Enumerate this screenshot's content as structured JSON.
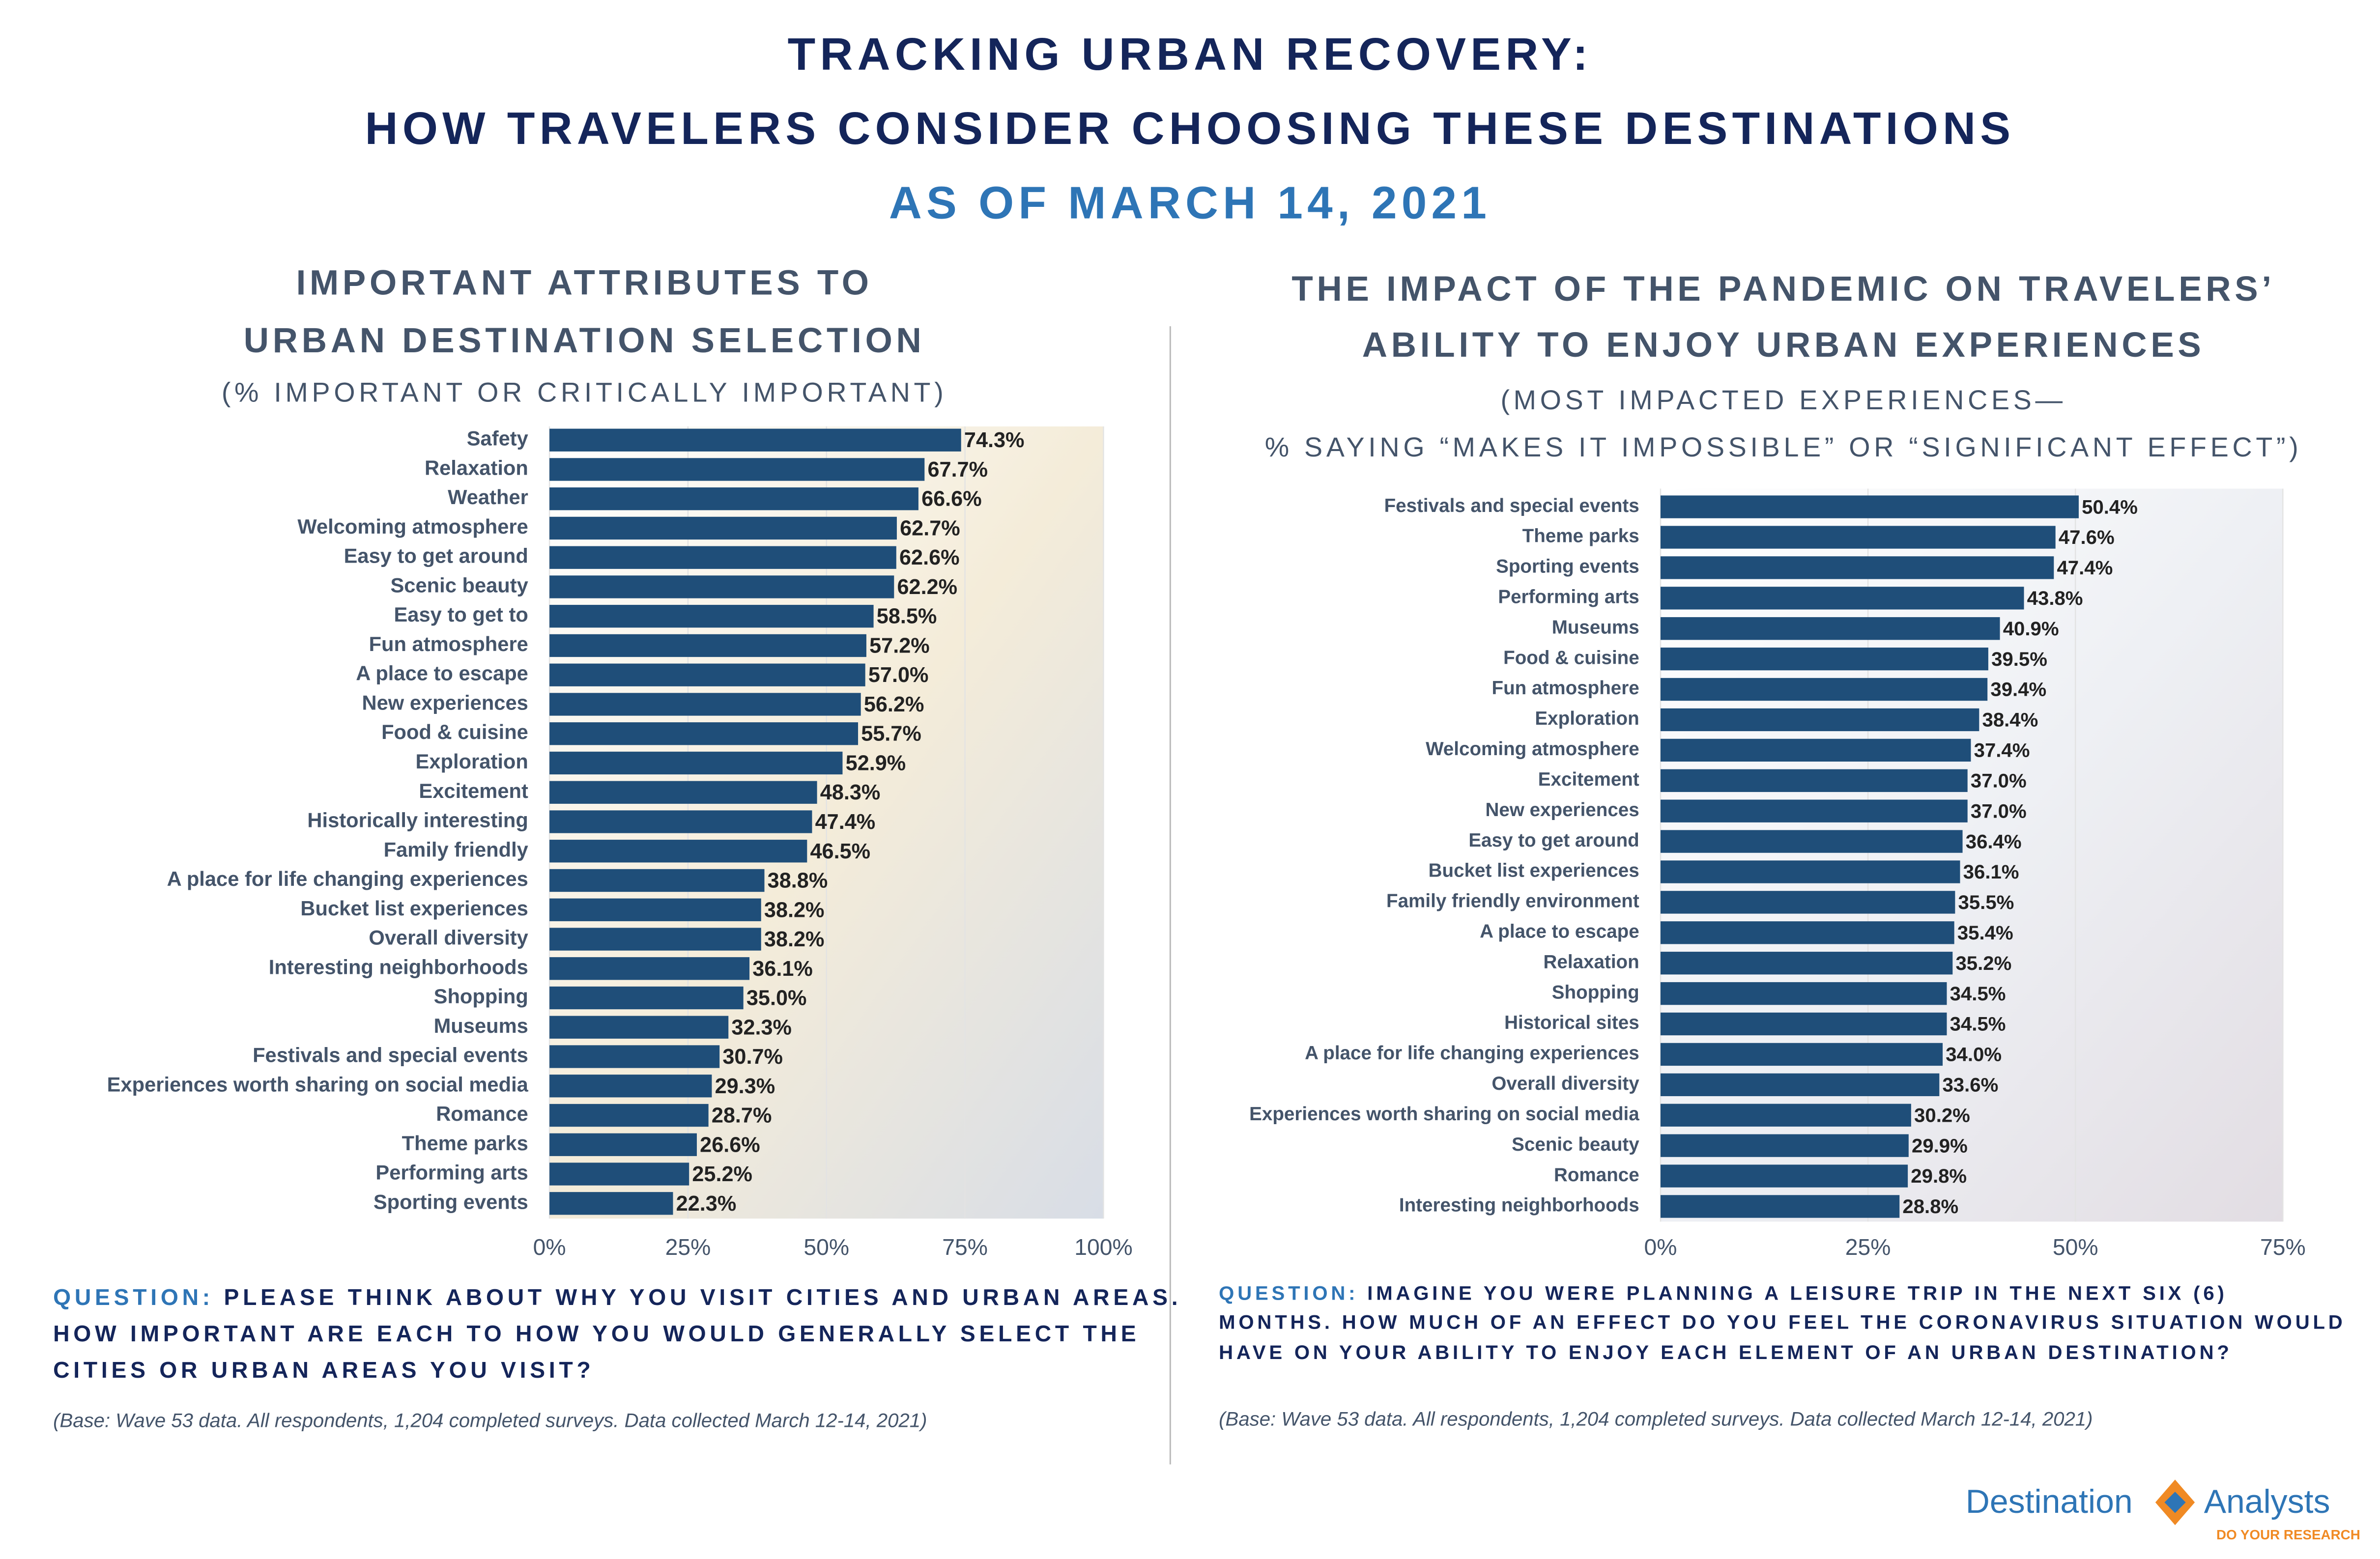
{
  "header": {
    "title_lines": [
      "TRACKING URBAN RECOVERY:",
      "HOW TRAVELERS CONSIDER CHOOSING THESE DESTINATIONS"
    ],
    "date": "AS OF MARCH 14, 2021"
  },
  "chart_data": [
    {
      "type": "bar",
      "orientation": "horizontal",
      "title_lines": [
        "IMPORTANT ATTRIBUTES TO",
        "URBAN DESTINATION SELECTION"
      ],
      "subtitle_lines": [
        "(% IMPORTANT OR CRITICALLY IMPORTANT)"
      ],
      "categories": [
        "Safety",
        "Relaxation",
        "Weather",
        "Welcoming atmosphere",
        "Easy to get around",
        "Scenic beauty",
        "Easy to get to",
        "Fun atmosphere",
        "A place to escape",
        "New experiences",
        "Food & cuisine",
        "Exploration",
        "Excitement",
        "Historically interesting",
        "Family friendly",
        "A place for life changing experiences",
        "Bucket list experiences",
        "Overall diversity",
        "Interesting neighborhoods",
        "Shopping",
        "Museums",
        "Festivals and special events",
        "Experiences worth sharing on social media",
        "Romance",
        "Theme parks",
        "Performing arts",
        "Sporting events"
      ],
      "values": [
        74.3,
        67.7,
        66.6,
        62.7,
        62.6,
        62.2,
        58.5,
        57.2,
        57.0,
        56.2,
        55.7,
        52.9,
        48.3,
        47.4,
        46.5,
        38.8,
        38.2,
        38.2,
        36.1,
        35.0,
        32.3,
        30.7,
        29.3,
        28.7,
        26.6,
        25.2,
        22.3
      ],
      "value_labels": [
        "74.3%",
        "67.7%",
        "66.6%",
        "62.7%",
        "62.6%",
        "62.2%",
        "58.5%",
        "57.2%",
        "57.0%",
        "56.2%",
        "55.7%",
        "52.9%",
        "48.3%",
        "47.4%",
        "46.5%",
        "38.8%",
        "38.2%",
        "38.2%",
        "36.1%",
        "35.0%",
        "32.3%",
        "30.7%",
        "29.3%",
        "28.7%",
        "26.6%",
        "25.2%",
        "22.3%"
      ],
      "color": "#1f4e79",
      "xlim": [
        0,
        100
      ],
      "xticks": [
        {
          "value": 0,
          "label": "0%"
        },
        {
          "value": 25,
          "label": "25%"
        },
        {
          "value": 50,
          "label": "50%"
        },
        {
          "value": 75,
          "label": "75%"
        },
        {
          "value": 100,
          "label": "100%"
        }
      ],
      "grid": true,
      "question_label": "QUESTION:",
      "question_lines": [
        "PLEASE THINK ABOUT WHY YOU VISIT CITIES AND URBAN AREAS.",
        "HOW IMPORTANT ARE EACH TO HOW YOU WOULD GENERALLY SELECT THE",
        "CITIES OR URBAN AREAS YOU VISIT?"
      ],
      "base": "(Base: Wave 53 data. All respondents, 1,204 completed surveys. Data collected March 12-14, 2021)"
    },
    {
      "type": "bar",
      "orientation": "horizontal",
      "title_lines": [
        "THE IMPACT OF THE PANDEMIC ON TRAVELERS’",
        "ABILITY TO ENJOY URBAN EXPERIENCES"
      ],
      "subtitle_lines": [
        "(MOST IMPACTED EXPERIENCES—",
        "% SAYING “MAKES IT IMPOSSIBLE” OR “SIGNIFICANT EFFECT”)"
      ],
      "categories": [
        "Festivals and special events",
        "Theme parks",
        "Sporting events",
        "Performing arts",
        "Museums",
        "Food & cuisine",
        "Fun atmosphere",
        "Exploration",
        "Welcoming atmosphere",
        "Excitement",
        "New experiences",
        "Easy to get around",
        "Bucket list experiences",
        "Family friendly environment",
        "A place to escape",
        "Relaxation",
        "Shopping",
        "Historical sites",
        "A place for life changing experiences",
        "Overall diversity",
        "Experiences worth sharing on social media",
        "Scenic beauty",
        "Romance",
        "Interesting neighborhoods"
      ],
      "values": [
        50.4,
        47.6,
        47.4,
        43.8,
        40.9,
        39.5,
        39.4,
        38.4,
        37.4,
        37.0,
        37.0,
        36.4,
        36.1,
        35.5,
        35.4,
        35.2,
        34.5,
        34.5,
        34.0,
        33.6,
        30.2,
        29.9,
        29.8,
        28.8
      ],
      "value_labels": [
        "50.4%",
        "47.6%",
        "47.4%",
        "43.8%",
        "40.9%",
        "39.5%",
        "39.4%",
        "38.4%",
        "37.4%",
        "37.0%",
        "37.0%",
        "36.4%",
        "36.1%",
        "35.5%",
        "35.4%",
        "35.2%",
        "34.5%",
        "34.5%",
        "34.0%",
        "33.6%",
        "30.2%",
        "29.9%",
        "29.8%",
        "28.8%"
      ],
      "color": "#1f4e79",
      "xlim": [
        0,
        75
      ],
      "xticks": [
        {
          "value": 0,
          "label": "0%"
        },
        {
          "value": 25,
          "label": "25%"
        },
        {
          "value": 50,
          "label": "50%"
        },
        {
          "value": 75,
          "label": "75%"
        }
      ],
      "grid": true,
      "question_label": "QUESTION:",
      "question_lines": [
        "IMAGINE YOU WERE PLANNING A LEISURE TRIP IN THE NEXT SIX (6)",
        "MONTHS. HOW MUCH OF AN EFFECT DO YOU FEEL THE CORONAVIRUS SITUATION WOULD",
        "HAVE ON YOUR ABILITY TO ENJOY EACH ELEMENT OF AN URBAN DESTINATION?"
      ],
      "base": "(Base: Wave 53 data. All respondents, 1,204 completed surveys. Data collected March 12-14, 2021)"
    }
  ],
  "logo": {
    "left": "Destination",
    "right": "Analysts",
    "tagline": "DO YOUR RESEARCH"
  }
}
